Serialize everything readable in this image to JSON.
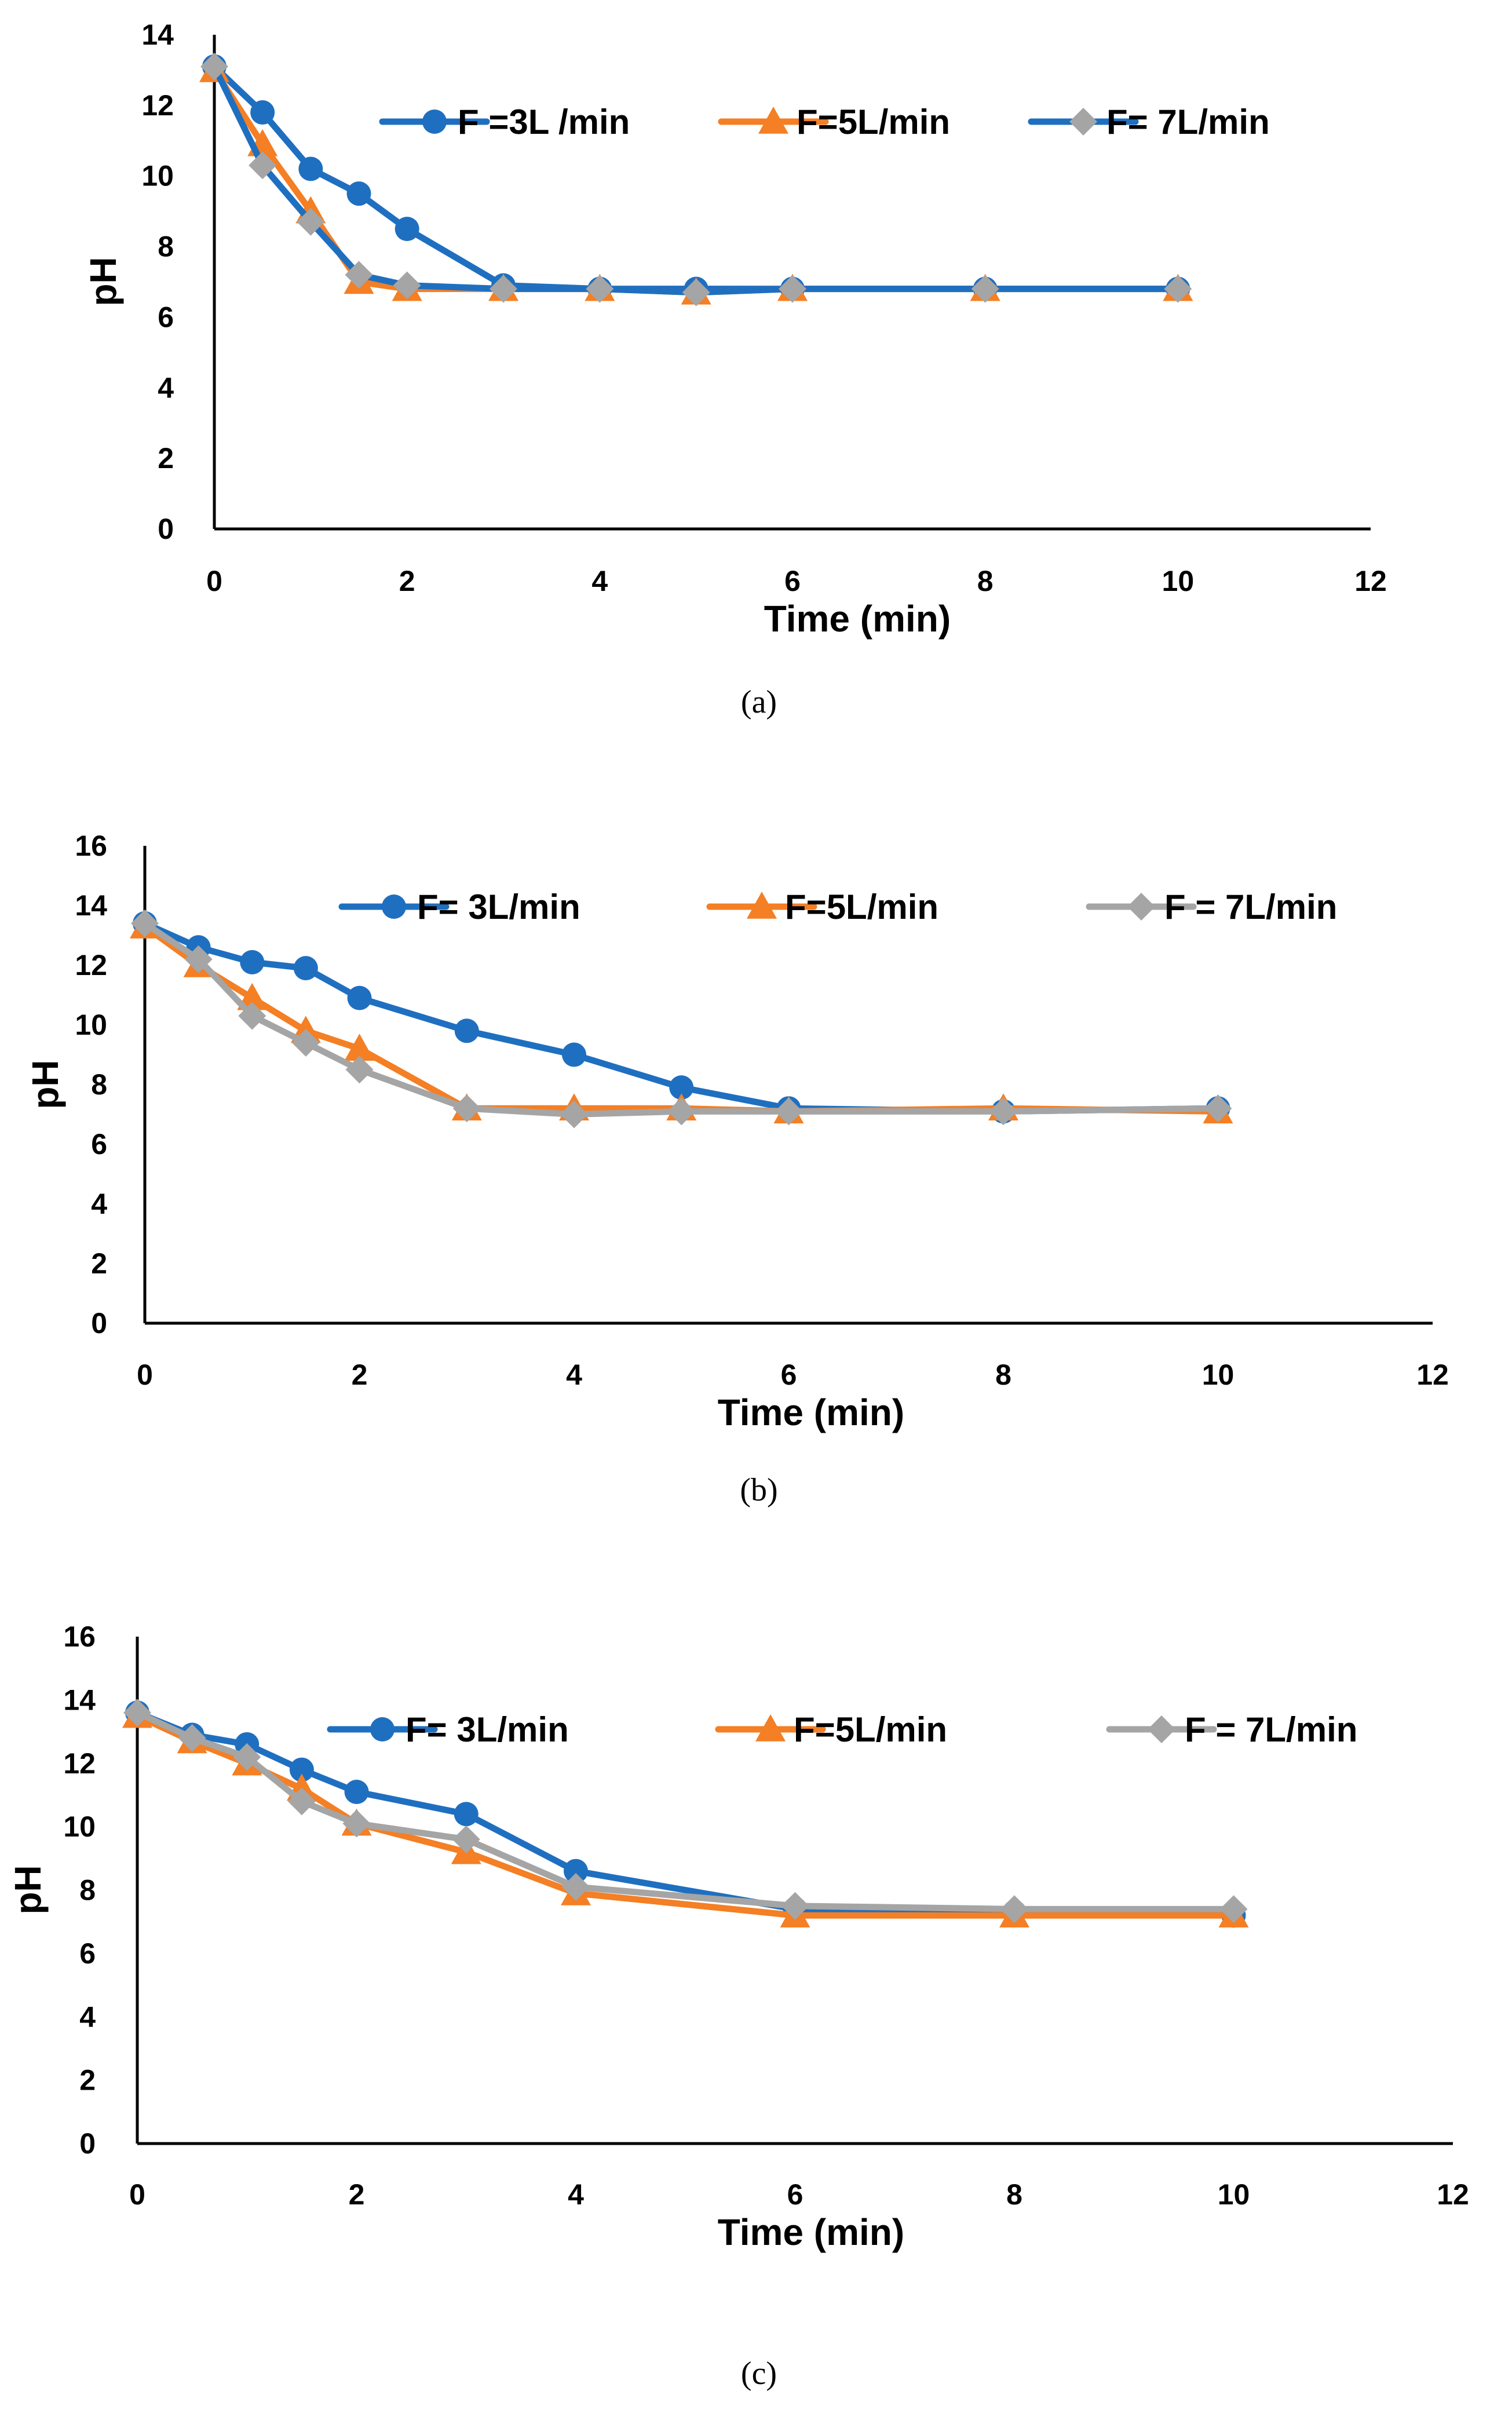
{
  "chart_data": [
    {
      "type": "line",
      "caption": "(a)",
      "xlabel": "Time (min)",
      "ylabel": "pH",
      "xlim": [
        0,
        12
      ],
      "ylim": [
        0,
        14
      ],
      "xticks": [
        "0",
        "2",
        "4",
        "6",
        "8",
        "10",
        "12"
      ],
      "yticks": [
        "0",
        "2",
        "4",
        "6",
        "8",
        "10",
        "12",
        "14"
      ],
      "legend_position": "top-right",
      "series": [
        {
          "name": "F =3L /min",
          "color": "#1F6FC0",
          "marker": "circle",
          "x": [
            0,
            0.5,
            1,
            1.5,
            2,
            3,
            4,
            5,
            6,
            8,
            10
          ],
          "y": [
            13.1,
            11.8,
            10.2,
            9.5,
            8.5,
            6.9,
            6.8,
            6.8,
            6.8,
            6.8,
            6.8
          ]
        },
        {
          "name": "F=5L/min",
          "color": "#F47F24",
          "marker": "triangle",
          "x": [
            0,
            0.5,
            1,
            1.5,
            2,
            3,
            4,
            5,
            6,
            8,
            10
          ],
          "y": [
            13.0,
            10.9,
            9.0,
            7.0,
            6.8,
            6.8,
            6.8,
            6.7,
            6.8,
            6.8,
            6.8
          ]
        },
        {
          "name": "F= 7L/min",
          "color": "#1F6FC0",
          "marker": "diamond",
          "marker_color": "#A5A5A5",
          "x": [
            0,
            0.5,
            1,
            1.5,
            2,
            3,
            4,
            5,
            6,
            8,
            10
          ],
          "y": [
            13.1,
            10.3,
            8.7,
            7.2,
            6.9,
            6.8,
            6.8,
            6.7,
            6.8,
            6.8,
            6.8
          ]
        }
      ]
    },
    {
      "type": "line",
      "caption": "(b)",
      "xlabel": "Time (min)",
      "ylabel": "pH",
      "xlim": [
        0,
        12
      ],
      "ylim": [
        0,
        16
      ],
      "xticks": [
        "0",
        "2",
        "4",
        "6",
        "8",
        "10",
        "12"
      ],
      "yticks": [
        "0",
        "2",
        "4",
        "6",
        "8",
        "10",
        "12",
        "14",
        "16"
      ],
      "legend_position": "top",
      "series": [
        {
          "name": "F= 3L/min",
          "color": "#1F6FC0",
          "marker": "circle",
          "x": [
            0,
            0.5,
            1,
            1.5,
            2,
            3,
            4,
            5,
            6,
            8,
            10
          ],
          "y": [
            13.4,
            12.6,
            12.1,
            11.9,
            10.9,
            9.8,
            9.0,
            7.9,
            7.2,
            7.1,
            7.2
          ]
        },
        {
          "name": "F=5L/min",
          "color": "#F47F24",
          "marker": "triangle",
          "x": [
            0,
            0.5,
            1,
            1.5,
            2,
            3,
            4,
            5,
            6,
            8,
            10
          ],
          "y": [
            13.3,
            12.0,
            10.9,
            9.8,
            9.2,
            7.2,
            7.2,
            7.2,
            7.1,
            7.2,
            7.1
          ]
        },
        {
          "name": "F = 7L/min",
          "color": "#A5A5A5",
          "marker": "diamond",
          "x": [
            0,
            0.5,
            1,
            1.5,
            2,
            3,
            4,
            5,
            6,
            8,
            10
          ],
          "y": [
            13.4,
            12.2,
            10.3,
            9.4,
            8.5,
            7.2,
            7.0,
            7.1,
            7.1,
            7.1,
            7.2
          ]
        }
      ]
    },
    {
      "type": "line",
      "caption": "(c)",
      "xlabel": "Time (min)",
      "ylabel": "pH",
      "xlim": [
        0,
        12
      ],
      "ylim": [
        0,
        16
      ],
      "xticks": [
        "0",
        "2",
        "4",
        "6",
        "8",
        "10",
        "12"
      ],
      "yticks": [
        "0",
        "2",
        "4",
        "6",
        "8",
        "10",
        "12",
        "14",
        "16"
      ],
      "legend_position": "top",
      "series": [
        {
          "name": "F= 3L/min",
          "color": "#1F6FC0",
          "marker": "circle",
          "x": [
            0,
            0.5,
            1,
            1.5,
            2,
            3,
            4,
            6,
            8,
            10
          ],
          "y": [
            13.6,
            12.9,
            12.6,
            11.8,
            11.1,
            10.4,
            8.6,
            7.4,
            7.3,
            7.2
          ]
        },
        {
          "name": "F=5L/min",
          "color": "#F47F24",
          "marker": "triangle",
          "x": [
            0,
            0.5,
            1,
            1.5,
            2,
            3,
            4,
            6,
            8,
            10
          ],
          "y": [
            13.5,
            12.7,
            12.0,
            11.2,
            10.1,
            9.2,
            7.9,
            7.2,
            7.2,
            7.2
          ]
        },
        {
          "name": "F = 7L/min",
          "color": "#A5A5A5",
          "marker": "diamond",
          "x": [
            0,
            0.5,
            1,
            1.5,
            2,
            3,
            4,
            6,
            8,
            10
          ],
          "y": [
            13.6,
            12.8,
            12.2,
            10.8,
            10.1,
            9.6,
            8.1,
            7.5,
            7.4,
            7.4
          ]
        }
      ]
    }
  ]
}
